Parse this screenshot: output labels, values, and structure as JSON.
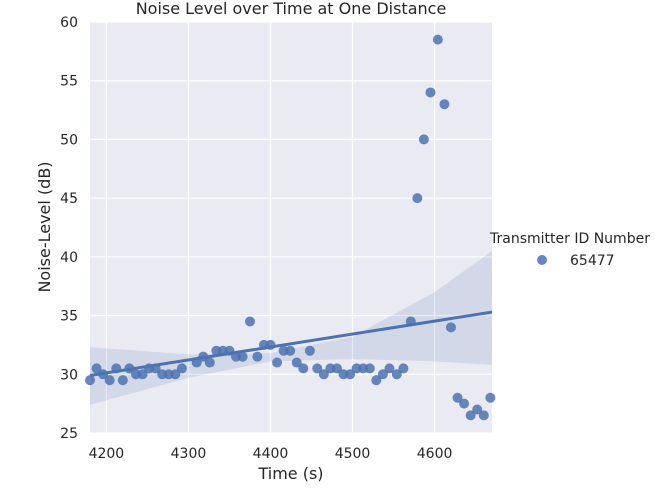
{
  "chart_data": {
    "type": "scatter",
    "title": "Noise Level over Time at One Distance",
    "xlabel": "Time (s)",
    "ylabel": "Noise-Level (dB)",
    "xlim": [
      4180,
      4670
    ],
    "ylim": [
      25,
      60
    ],
    "x_ticks": [
      4200,
      4300,
      4400,
      4500,
      4600
    ],
    "y_ticks": [
      25,
      30,
      35,
      40,
      45,
      50,
      55,
      60
    ],
    "grid": true,
    "legend": {
      "title": "Transmitter ID Number",
      "position": "right",
      "entries": [
        "65477"
      ]
    },
    "series": [
      {
        "name": "65477",
        "color": "#4c72b0",
        "points": [
          [
            4180,
            29.5
          ],
          [
            4188,
            30.5
          ],
          [
            4196,
            30.0
          ],
          [
            4204,
            29.5
          ],
          [
            4212,
            30.5
          ],
          [
            4220,
            29.5
          ],
          [
            4228,
            30.5
          ],
          [
            4236,
            30.0
          ],
          [
            4244,
            30.0
          ],
          [
            4252,
            30.5
          ],
          [
            4260,
            30.5
          ],
          [
            4268,
            30.0
          ],
          [
            4276,
            30.0
          ],
          [
            4284,
            30.0
          ],
          [
            4292,
            30.5
          ],
          [
            4310,
            31.0
          ],
          [
            4318,
            31.5
          ],
          [
            4326,
            31.0
          ],
          [
            4334,
            32.0
          ],
          [
            4342,
            32.0
          ],
          [
            4350,
            32.0
          ],
          [
            4358,
            31.5
          ],
          [
            4366,
            31.5
          ],
          [
            4375,
            34.5
          ],
          [
            4384,
            31.5
          ],
          [
            4392,
            32.5
          ],
          [
            4400,
            32.5
          ],
          [
            4408,
            31.0
          ],
          [
            4416,
            32.0
          ],
          [
            4424,
            32.0
          ],
          [
            4432,
            31.0
          ],
          [
            4440,
            30.5
          ],
          [
            4448,
            32.0
          ],
          [
            4457,
            30.5
          ],
          [
            4465,
            30.0
          ],
          [
            4473,
            30.5
          ],
          [
            4481,
            30.5
          ],
          [
            4489,
            30.0
          ],
          [
            4497,
            30.0
          ],
          [
            4505,
            30.5
          ],
          [
            4513,
            30.5
          ],
          [
            4521,
            30.5
          ],
          [
            4529,
            29.5
          ],
          [
            4537,
            30.0
          ],
          [
            4545,
            30.5
          ],
          [
            4554,
            30.0
          ],
          [
            4562,
            30.5
          ],
          [
            4571,
            34.5
          ],
          [
            4579,
            45.0
          ],
          [
            4587,
            50.0
          ],
          [
            4595,
            54.0
          ],
          [
            4604,
            58.5
          ],
          [
            4612,
            53.0
          ],
          [
            4620,
            34.0
          ],
          [
            4628,
            28.0
          ],
          [
            4636,
            27.5
          ],
          [
            4644,
            26.5
          ],
          [
            4652,
            27.0
          ],
          [
            4660,
            26.5
          ],
          [
            4668,
            28.0
          ]
        ]
      }
    ],
    "regression": {
      "line": [
        [
          4180,
          29.9
        ],
        [
          4670,
          35.3
        ]
      ],
      "ci_upper": [
        [
          4180,
          32.3
        ],
        [
          4300,
          31.7
        ],
        [
          4400,
          31.8
        ],
        [
          4500,
          33.2
        ],
        [
          4600,
          37.0
        ],
        [
          4670,
          40.5
        ]
      ],
      "ci_lower": [
        [
          4180,
          27.4
        ],
        [
          4300,
          29.7
        ],
        [
          4400,
          31.1
        ],
        [
          4500,
          31.3
        ],
        [
          4600,
          31.1
        ],
        [
          4670,
          30.8
        ]
      ]
    }
  }
}
